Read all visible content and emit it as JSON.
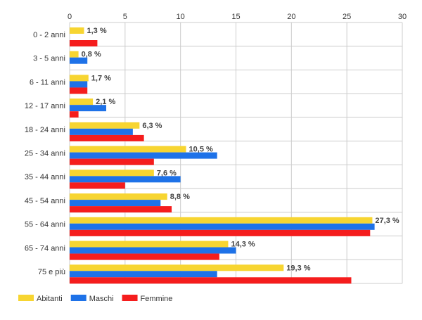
{
  "chart_data": {
    "type": "bar",
    "orientation": "horizontal",
    "title": "",
    "xlabel": "",
    "ylabel": "",
    "xlim": [
      0,
      30
    ],
    "x_ticks": [
      "0",
      "5",
      "10",
      "15",
      "20",
      "25",
      "30"
    ],
    "x_axis_position": "top",
    "grid": true,
    "legend_position": "bottom-left",
    "categories": [
      "0 - 2 anni",
      "3 - 5 anni",
      "6 - 11 anni",
      "12 - 17 anni",
      "18 - 24 anni",
      "25 - 34 anni",
      "35 - 44 anni",
      "45 - 54 anni",
      "55 - 64 anni",
      "65 - 74 anni",
      "75 e più"
    ],
    "series": [
      {
        "name": "Abitanti",
        "color": "#f7d531",
        "values": [
          1.3,
          0.8,
          1.7,
          2.1,
          6.3,
          10.5,
          7.6,
          8.8,
          27.3,
          14.3,
          19.3
        ],
        "data_labels": [
          "1,3 %",
          "0,8 %",
          "1,7 %",
          "2,1 %",
          "6,3 %",
          "10,5 %",
          "7,6 %",
          "8,8 %",
          "27,3 %",
          "14,3 %",
          "19,3 %"
        ]
      },
      {
        "name": "Maschi",
        "color": "#1e72e8",
        "values": [
          0,
          1.6,
          1.6,
          3.3,
          5.7,
          13.3,
          10.0,
          8.2,
          27.5,
          15.0,
          13.3
        ]
      },
      {
        "name": "Femmine",
        "color": "#f51d1d",
        "values": [
          2.5,
          0,
          1.6,
          0.8,
          6.7,
          7.6,
          5.0,
          9.2,
          27.1,
          13.5,
          25.4
        ]
      }
    ]
  }
}
